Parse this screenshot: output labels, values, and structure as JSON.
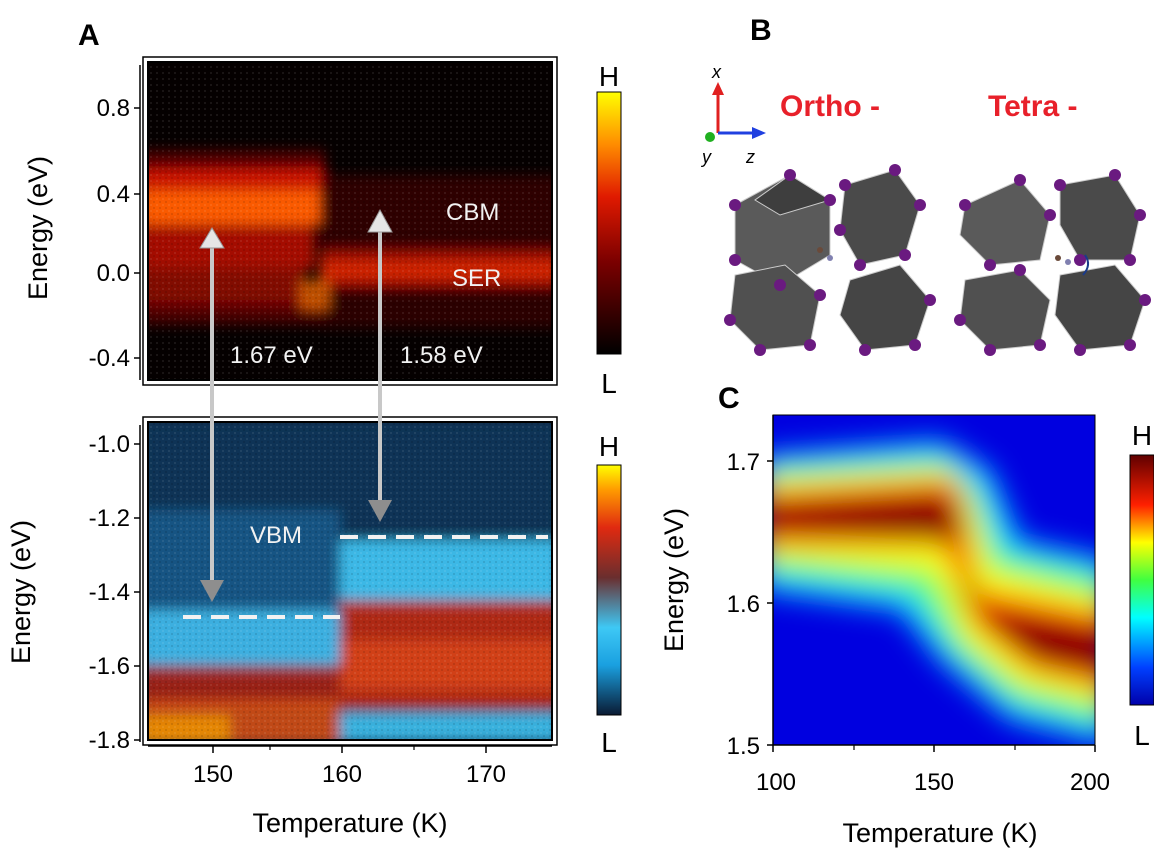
{
  "panels": {
    "a": {
      "label": "A",
      "top": {
        "ylabel": "Energy (eV)",
        "yticks": [
          "0.8",
          "0.4",
          "0.0",
          "-0.4"
        ],
        "annotations": {
          "cbm": "CBM",
          "ser": "SER",
          "gap_left": "1.67 eV",
          "gap_right": "1.58 eV"
        },
        "colorbar": {
          "high": "H",
          "low": "L",
          "colormap": "hot"
        }
      },
      "bottom": {
        "ylabel": "Energy (eV)",
        "yticks": [
          "-1.0",
          "-1.2",
          "-1.4",
          "-1.6",
          "-1.8"
        ],
        "annotations": {
          "vbm": "VBM"
        },
        "colorbar": {
          "high": "H",
          "low": "L",
          "colormap": "dark-blue-cyan-red-yellow"
        }
      },
      "xlabel": "Temperature (K)",
      "xticks": [
        "150",
        "160",
        "170"
      ]
    },
    "b": {
      "label": "B",
      "axes": {
        "x": "x",
        "y": "y",
        "z": "z"
      },
      "phases": {
        "ortho": "Ortho -",
        "tetra": "Tetra -"
      }
    },
    "c": {
      "label": "C",
      "ylabel": "Energy (eV)",
      "yticks": [
        "1.7",
        "1.6",
        "1.5"
      ],
      "xlabel": "Temperature (K)",
      "xticks": [
        "100",
        "150",
        "200"
      ],
      "colorbar": {
        "high": "H",
        "low": "L",
        "colormap": "jet"
      }
    }
  },
  "chart_data": [
    {
      "type": "heatmap",
      "panel": "A-top",
      "xlabel": "Temperature (K)",
      "ylabel": "Energy (eV)",
      "xlim": [
        146.5,
        174.5
      ],
      "ylim": [
        -0.5,
        1.0
      ],
      "features": [
        {
          "name": "CBM",
          "x": [
            147,
            158.5
          ],
          "y": 0.25
        },
        {
          "name": "SER",
          "x": [
            159,
            174.5
          ],
          "y": 0.0
        }
      ],
      "gaps_eV": [
        {
          "temperature": 151,
          "value": 1.67
        },
        {
          "temperature": 162,
          "value": 1.58
        }
      ]
    },
    {
      "type": "heatmap",
      "panel": "A-bottom",
      "xlabel": "Temperature (K)",
      "ylabel": "Energy (eV)",
      "xlim": [
        146.5,
        174.5
      ],
      "ylim": [
        -1.82,
        -0.92
      ],
      "vbm_edges": [
        {
          "x": [
            147,
            159
          ],
          "y": -1.47
        },
        {
          "x": [
            160,
            174.5
          ],
          "y": -1.25
        }
      ]
    },
    {
      "type": "heatmap",
      "panel": "C",
      "xlabel": "Temperature (K)",
      "ylabel": "Energy (eV)",
      "xlim": [
        100,
        200
      ],
      "ylim": [
        1.5,
        1.74
      ],
      "ridge": {
        "x": [
          100,
          120,
          140,
          155,
          160,
          165,
          170,
          180,
          190,
          200
        ],
        "y": [
          1.658,
          1.662,
          1.668,
          1.671,
          1.655,
          1.615,
          1.595,
          1.583,
          1.575,
          1.568
        ]
      }
    }
  ]
}
